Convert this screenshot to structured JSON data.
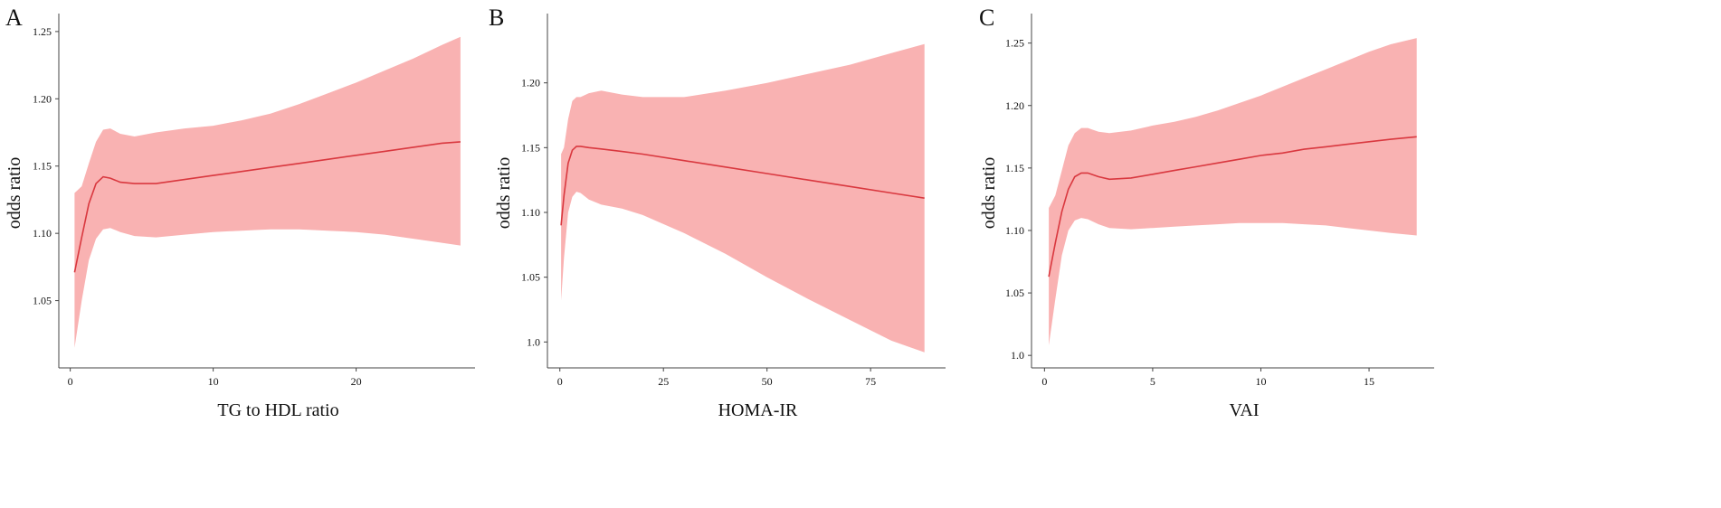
{
  "colors": {
    "band": "#f9b2b2",
    "line": "#d9383f",
    "axis": "#444444"
  },
  "chart_data": [
    {
      "type": "line",
      "panel_label": "A",
      "xlabel": "TG to HDL ratio",
      "ylabel": "odds ratio",
      "xlim": [
        -0.8,
        28
      ],
      "ylim": [
        1.0,
        1.26
      ],
      "xticks": [
        0,
        10,
        20
      ],
      "yticks": [
        1.05,
        1.1,
        1.15,
        1.2,
        1.25
      ],
      "ytick_labels": [
        "1.05",
        "1.10",
        "1.15",
        "1.20",
        "1.25"
      ],
      "series": [
        {
          "x": [
            0.3,
            0.8,
            1.3,
            1.8,
            2.3,
            2.8,
            3.5,
            4.5,
            6,
            8,
            10,
            12,
            14,
            16,
            18,
            20,
            22,
            24,
            26,
            27.3
          ],
          "y": [
            1.071,
            1.097,
            1.122,
            1.137,
            1.142,
            1.141,
            1.138,
            1.137,
            1.137,
            1.14,
            1.143,
            1.146,
            1.149,
            1.152,
            1.155,
            1.158,
            1.161,
            1.164,
            1.167,
            1.168
          ],
          "lower": [
            1.015,
            1.05,
            1.08,
            1.096,
            1.103,
            1.104,
            1.101,
            1.098,
            1.097,
            1.099,
            1.101,
            1.102,
            1.103,
            1.103,
            1.102,
            1.101,
            1.099,
            1.096,
            1.093,
            1.091
          ],
          "upper": [
            1.13,
            1.135,
            1.152,
            1.168,
            1.177,
            1.178,
            1.174,
            1.172,
            1.175,
            1.178,
            1.18,
            1.184,
            1.189,
            1.196,
            1.204,
            1.212,
            1.221,
            1.23,
            1.24,
            1.246
          ]
        }
      ]
    },
    {
      "type": "line",
      "panel_label": "B",
      "xlabel": "HOMA-IR",
      "ylabel": "odds ratio",
      "xlim": [
        -3,
        92
      ],
      "ylim": [
        0.98,
        1.25
      ],
      "xticks": [
        0,
        25,
        50,
        75
      ],
      "yticks": [
        1.0,
        1.05,
        1.1,
        1.15,
        1.2
      ],
      "ytick_labels": [
        "1.0",
        "1.05",
        "1.10",
        "1.15",
        "1.20"
      ],
      "series": [
        {
          "x": [
            0.3,
            1,
            2,
            3,
            4,
            5,
            7,
            10,
            15,
            20,
            30,
            40,
            50,
            60,
            70,
            80,
            88
          ],
          "y": [
            1.09,
            1.113,
            1.138,
            1.148,
            1.151,
            1.151,
            1.15,
            1.149,
            1.147,
            1.145,
            1.14,
            1.135,
            1.13,
            1.125,
            1.12,
            1.115,
            1.111
          ],
          "lower": [
            1.032,
            1.065,
            1.1,
            1.112,
            1.116,
            1.115,
            1.11,
            1.106,
            1.103,
            1.098,
            1.084,
            1.068,
            1.05,
            1.033,
            1.017,
            1.001,
            0.992
          ],
          "upper": [
            1.145,
            1.15,
            1.172,
            1.186,
            1.189,
            1.189,
            1.192,
            1.194,
            1.191,
            1.189,
            1.189,
            1.194,
            1.2,
            1.207,
            1.214,
            1.223,
            1.23
          ]
        }
      ]
    },
    {
      "type": "line",
      "panel_label": "C",
      "xlabel": "VAI",
      "ylabel": "odds ratio",
      "xlim": [
        -0.6,
        17.8
      ],
      "ylim": [
        0.99,
        1.27
      ],
      "xticks": [
        0,
        5,
        10,
        15
      ],
      "yticks": [
        1.0,
        1.05,
        1.1,
        1.15,
        1.2,
        1.25
      ],
      "ytick_labels": [
        "1.0",
        "1.05",
        "1.10",
        "1.15",
        "1.20",
        "1.25"
      ],
      "series": [
        {
          "x": [
            0.2,
            0.5,
            0.8,
            1.1,
            1.4,
            1.7,
            2.0,
            2.5,
            3.0,
            4.0,
            5.0,
            6.0,
            7.0,
            8.0,
            9.0,
            10.0,
            11.0,
            12.0,
            13.0,
            14.0,
            15.0,
            16.0,
            17.2
          ],
          "y": [
            1.063,
            1.09,
            1.115,
            1.133,
            1.143,
            1.146,
            1.146,
            1.143,
            1.141,
            1.142,
            1.145,
            1.148,
            1.151,
            1.154,
            1.157,
            1.16,
            1.162,
            1.165,
            1.167,
            1.169,
            1.171,
            1.173,
            1.175
          ],
          "lower": [
            1.008,
            1.045,
            1.08,
            1.1,
            1.108,
            1.11,
            1.109,
            1.105,
            1.102,
            1.101,
            1.102,
            1.103,
            1.104,
            1.105,
            1.106,
            1.106,
            1.106,
            1.105,
            1.104,
            1.102,
            1.1,
            1.098,
            1.096
          ],
          "upper": [
            1.118,
            1.128,
            1.148,
            1.168,
            1.178,
            1.182,
            1.182,
            1.179,
            1.178,
            1.18,
            1.184,
            1.187,
            1.191,
            1.196,
            1.202,
            1.208,
            1.215,
            1.222,
            1.229,
            1.236,
            1.243,
            1.249,
            1.254
          ]
        }
      ]
    }
  ]
}
